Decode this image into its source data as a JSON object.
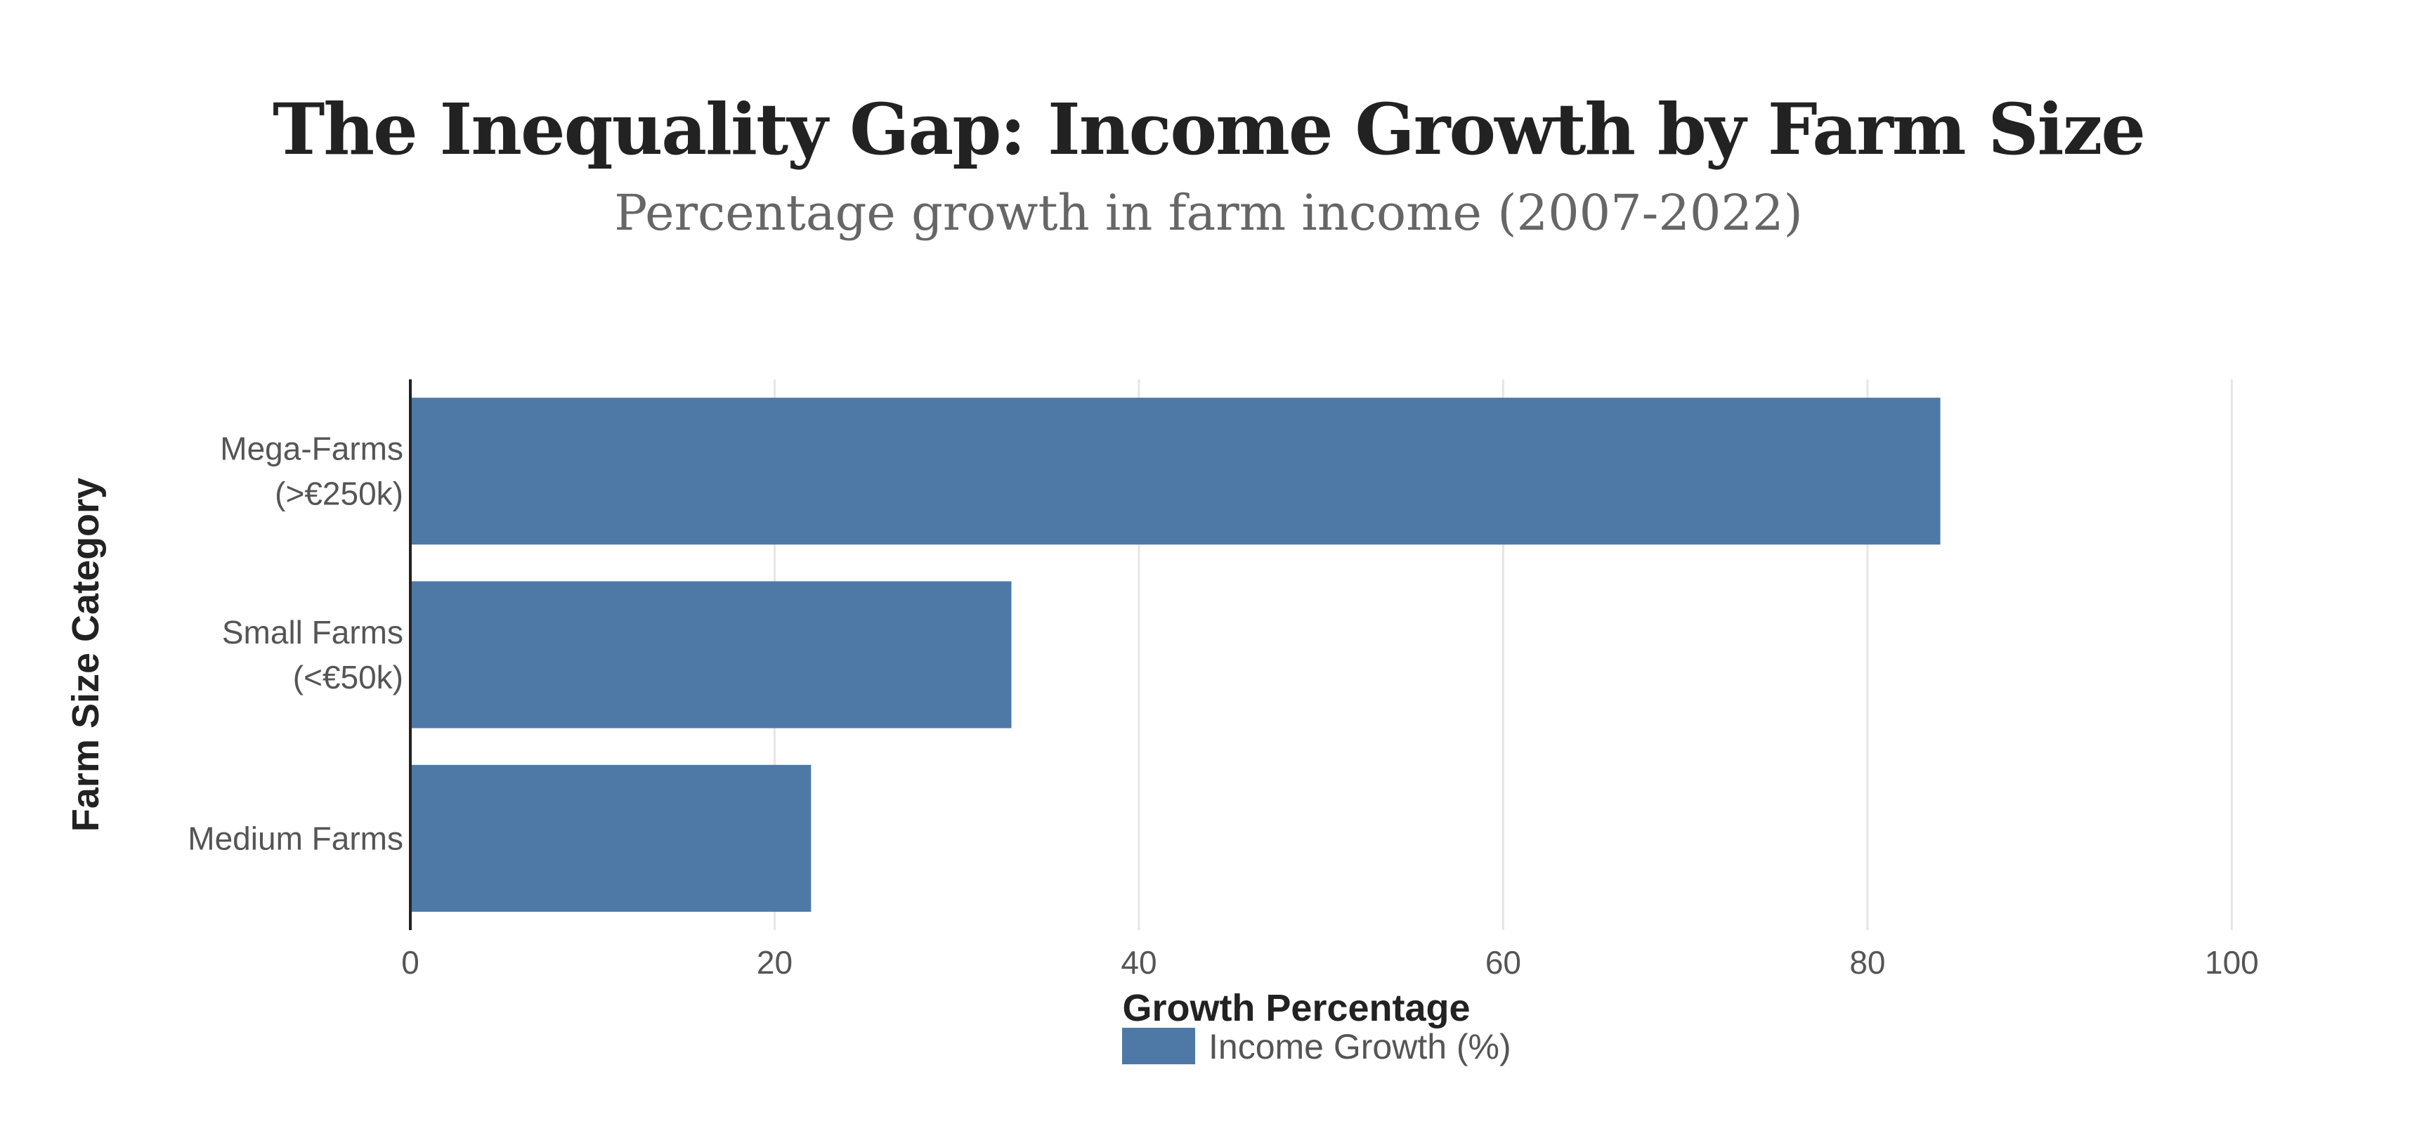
{
  "chart_data": {
    "type": "bar",
    "orientation": "horizontal",
    "title": "The Inequality Gap: Income Growth by Farm Size",
    "subtitle": "Percentage growth in farm income (2007-2022)",
    "categories": [
      [
        "Mega-Farms",
        "(>€250k)"
      ],
      [
        "Small Farms",
        "(<€50k)"
      ],
      [
        "Medium Farms"
      ]
    ],
    "series": [
      {
        "name": "Income Growth (%)",
        "values": [
          84,
          33,
          22
        ],
        "color": "#4e79a7"
      }
    ],
    "xlabel": "Growth Percentage",
    "ylabel": "Farm Size Category",
    "xlim": [
      0,
      105
    ],
    "xticks": [
      0,
      20,
      40,
      60,
      80,
      100
    ],
    "grid": true,
    "legend_position": "bottom-center"
  }
}
